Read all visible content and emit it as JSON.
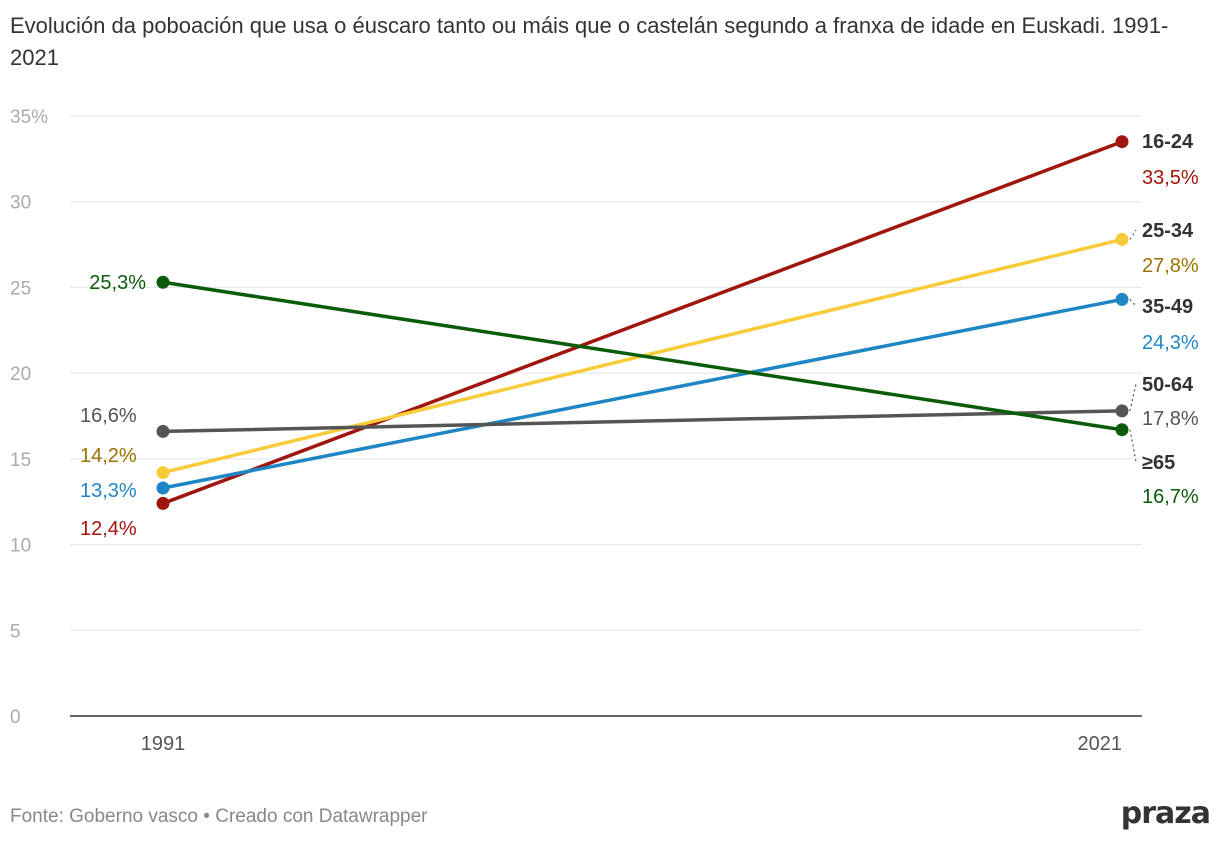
{
  "title": "Evolución da poboación que usa o éuscaro tanto ou máis que o castelán segundo a franxa de idade en Euskadi. 1991-2021",
  "footer": {
    "source": "Fonte: Goberno vasco",
    "separator": " • ",
    "created": "Creado con Datawrapper"
  },
  "brand": "praza",
  "chart_data": {
    "type": "line",
    "title": "Evolución da poboación que usa o éuscaro tanto ou máis que o castelán segundo a franxa de idade en Euskadi. 1991-2021",
    "x": [
      "1991",
      "2021"
    ],
    "ylim": [
      0,
      35
    ],
    "yticks": [
      0,
      5,
      10,
      15,
      20,
      25,
      30,
      35
    ],
    "ytick_labels": [
      "0",
      "5",
      "10",
      "15",
      "20",
      "25",
      "30",
      "35%"
    ],
    "grid": true,
    "series": [
      {
        "name": "16-24",
        "values": [
          12.4,
          33.5
        ],
        "color": "#a0150d",
        "labels": [
          "12,4%",
          "33,5%"
        ]
      },
      {
        "name": "25-34",
        "values": [
          14.2,
          27.8
        ],
        "color": "#f8cb3b",
        "label_color": "#9a7300",
        "labels": [
          "14,2%",
          "27,8%"
        ]
      },
      {
        "name": "35-49",
        "values": [
          13.3,
          24.3
        ],
        "color": "#1f86c5",
        "labels": [
          "13,3%",
          "24,3%"
        ]
      },
      {
        "name": "50-64",
        "values": [
          16.6,
          17.8
        ],
        "color": "#555555",
        "labels": [
          "16,6%",
          "17,8%"
        ]
      },
      {
        "name": "≥65",
        "values": [
          25.3,
          16.7
        ],
        "color": "#0a5c0a",
        "labels": [
          "25,3%",
          "16,7%"
        ]
      }
    ]
  }
}
